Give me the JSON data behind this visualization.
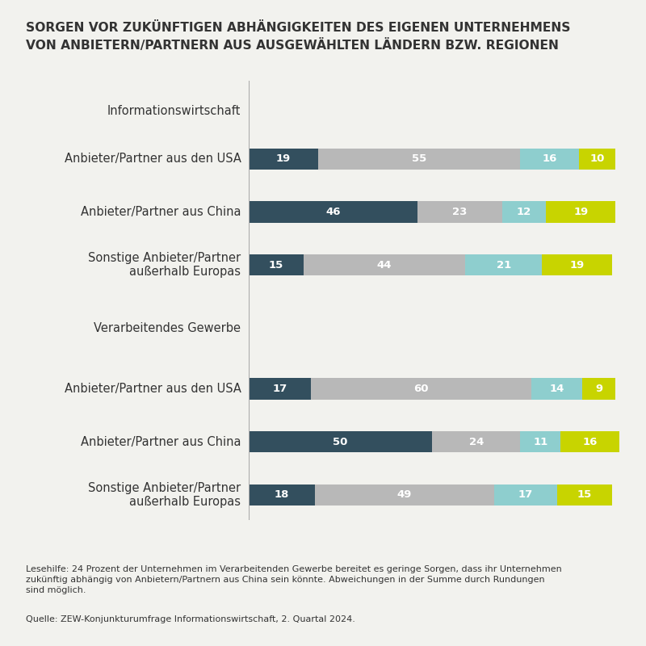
{
  "title_line1": "SORGEN VOR ZUKÜNFTIGEN ABHÄNGIGKEITEN DES EIGENEN UNTERNEHMENS",
  "title_line2": "VON ANBIETERN/PARTNERN AUS AUSGEWÄHLTEN LÄNDERN BZW. REGIONEN",
  "colors": {
    "dark_teal": "#334f5e",
    "light_gray": "#b8b8b8",
    "light_blue": "#8ecece",
    "yellow_green": "#c8d400"
  },
  "section1_label": "Informationswirtschaft",
  "section2_label": "Verarbeitendes Gewerbe",
  "bar_labels": [
    "Anbieter/Partner aus den USA",
    "Anbieter/Partner aus China",
    "Sonstige Anbieter/Partner\naußerhalb Europas",
    "Anbieter/Partner aus den USA",
    "Anbieter/Partner aus China",
    "Sonstige Anbieter/Partner\naußerhalb Europas"
  ],
  "data": [
    [
      19,
      55,
      16,
      10
    ],
    [
      46,
      23,
      12,
      19
    ],
    [
      15,
      44,
      21,
      19
    ],
    [
      17,
      60,
      14,
      9
    ],
    [
      50,
      24,
      11,
      16
    ],
    [
      18,
      49,
      17,
      15
    ]
  ],
  "note": "Lesehilfe: 24 Prozent der Unternehmen im Verarbeitenden Gewerbe bereitet es geringe Sorgen, dass ihr Unternehmen\nzukünftig abhängig von Anbietern/Partnern aus China sein könnte. Abweichungen in der Summe durch Rundungen\nsind möglich.",
  "source": "Quelle: ZEW-Konjunkturumfrage Informationswirtschaft, 2. Quartal 2024.",
  "background_color": "#f2f2ee"
}
